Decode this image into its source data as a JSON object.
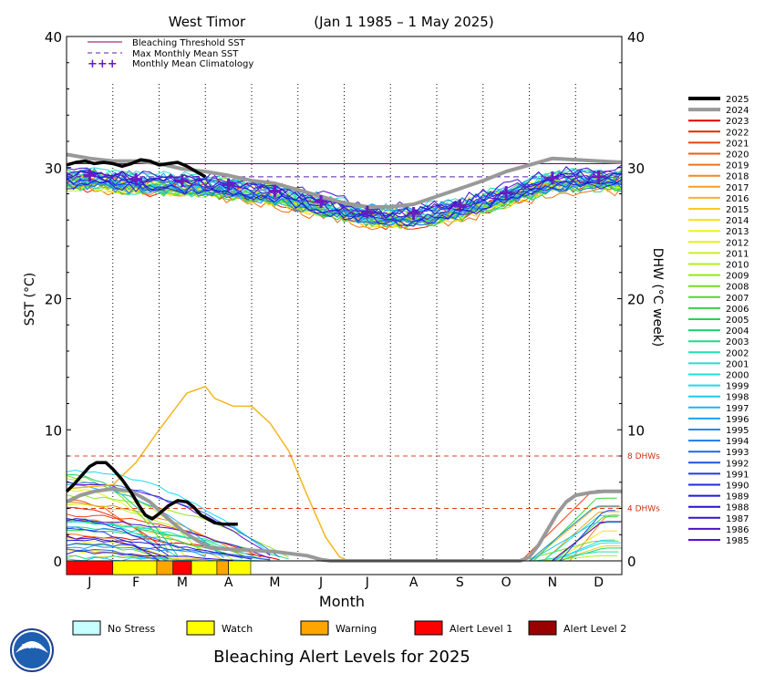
{
  "chart_data": {
    "type": "line",
    "title": "West Timor",
    "date_range": "(Jan 1 1985 – 1 May 2025)",
    "xlabel": "Month",
    "ylabel_left": "SST (°C)",
    "ylabel_right": "DHW (°C week)",
    "ylim": [
      0,
      40
    ],
    "yticks": [
      0,
      10,
      20,
      30,
      40
    ],
    "months": [
      "J",
      "F",
      "M",
      "A",
      "M",
      "J",
      "J",
      "A",
      "S",
      "O",
      "N",
      "D"
    ],
    "bleaching_threshold_sst": 30.3,
    "max_monthly_mean_sst": 29.3,
    "dhw_thresholds": [
      {
        "value": 8,
        "label": "8 DHWs"
      },
      {
        "value": 4,
        "label": "4 DHWs"
      }
    ],
    "monthly_mean_climatology": [
      29.4,
      29.1,
      29.0,
      28.7,
      28.2,
      27.4,
      26.6,
      26.5,
      27.1,
      28.1,
      29.2,
      29.3
    ],
    "legend_main": [
      {
        "label": "Bleaching Threshold SST",
        "style": "solid",
        "color": "#880055"
      },
      {
        "label": "Max Monthly Mean SST",
        "style": "dashed",
        "color": "#5522aa"
      },
      {
        "label": "Monthly Mean Climatology",
        "style": "plus",
        "color": "#6a1bc2"
      }
    ],
    "highlight_series": [
      {
        "name": "2025",
        "color": "#000000",
        "sst": [
          [
            0.0,
            30.2
          ],
          [
            0.2,
            30.4
          ],
          [
            0.4,
            30.5
          ],
          [
            0.6,
            30.3
          ],
          [
            0.8,
            30.4
          ],
          [
            1.0,
            30.3
          ],
          [
            1.2,
            30.1
          ],
          [
            1.4,
            30.3
          ],
          [
            1.6,
            30.6
          ],
          [
            1.8,
            30.5
          ],
          [
            2.0,
            30.2
          ],
          [
            2.2,
            30.3
          ],
          [
            2.4,
            30.4
          ],
          [
            2.6,
            30.1
          ],
          [
            2.8,
            29.7
          ],
          [
            3.0,
            29.3
          ]
        ],
        "dhw": [
          [
            0.0,
            5.3
          ],
          [
            0.15,
            5.8
          ],
          [
            0.3,
            6.4
          ],
          [
            0.5,
            7.2
          ],
          [
            0.65,
            7.5
          ],
          [
            0.85,
            7.5
          ],
          [
            1.0,
            7.0
          ],
          [
            1.2,
            6.2
          ],
          [
            1.4,
            5.2
          ],
          [
            1.55,
            4.3
          ],
          [
            1.7,
            3.5
          ],
          [
            1.85,
            3.2
          ],
          [
            2.0,
            3.6
          ],
          [
            2.2,
            4.2
          ],
          [
            2.4,
            4.6
          ],
          [
            2.6,
            4.5
          ],
          [
            2.75,
            4.1
          ],
          [
            2.9,
            3.5
          ],
          [
            3.05,
            3.2
          ],
          [
            3.2,
            2.9
          ],
          [
            3.4,
            2.8
          ],
          [
            3.6,
            2.8
          ],
          [
            3.7,
            2.8
          ]
        ]
      },
      {
        "name": "2024",
        "color": "#999999",
        "sst": [
          [
            0.0,
            31.0
          ],
          [
            0.5,
            30.7
          ],
          [
            1.0,
            30.5
          ],
          [
            1.5,
            30.5
          ],
          [
            2.0,
            30.3
          ],
          [
            2.5,
            29.9
          ],
          [
            3.0,
            29.7
          ],
          [
            3.5,
            29.4
          ],
          [
            4.0,
            29.0
          ],
          [
            4.5,
            28.8
          ],
          [
            5.0,
            28.3
          ],
          [
            5.5,
            27.8
          ],
          [
            6.0,
            27.3
          ],
          [
            6.5,
            27.0
          ],
          [
            7.0,
            27.0
          ],
          [
            7.5,
            27.2
          ],
          [
            8.0,
            27.8
          ],
          [
            8.5,
            28.4
          ],
          [
            9.0,
            29.0
          ],
          [
            9.5,
            29.7
          ],
          [
            10.0,
            30.2
          ],
          [
            10.5,
            30.7
          ],
          [
            11.0,
            30.6
          ],
          [
            11.5,
            30.5
          ],
          [
            12.0,
            30.4
          ]
        ],
        "dhw": [
          [
            0.0,
            4.5
          ],
          [
            0.3,
            5.0
          ],
          [
            0.6,
            5.3
          ],
          [
            1.0,
            5.5
          ],
          [
            1.4,
            5.3
          ],
          [
            1.8,
            4.5
          ],
          [
            2.2,
            3.2
          ],
          [
            2.5,
            2.3
          ],
          [
            2.8,
            1.6
          ],
          [
            3.1,
            1.0
          ],
          [
            3.5,
            0.9
          ],
          [
            4.5,
            0.7
          ],
          [
            5.2,
            0.4
          ],
          [
            5.5,
            0.1
          ],
          [
            5.7,
            0.0
          ],
          [
            9.8,
            0.0
          ],
          [
            10.0,
            0.3
          ],
          [
            10.2,
            1.2
          ],
          [
            10.4,
            2.4
          ],
          [
            10.6,
            3.6
          ],
          [
            10.8,
            4.5
          ],
          [
            11.0,
            5.0
          ],
          [
            11.3,
            5.2
          ],
          [
            11.6,
            5.3
          ],
          [
            12.0,
            5.3
          ]
        ]
      }
    ],
    "year_legend": [
      {
        "year": "2025",
        "color": "#000000"
      },
      {
        "year": "2024",
        "color": "#999999"
      },
      {
        "year": "2023",
        "color": "#e00000"
      },
      {
        "year": "2022",
        "color": "#ee2200"
      },
      {
        "year": "2021",
        "color": "#f04010"
      },
      {
        "year": "2020",
        "color": "#f05a10"
      },
      {
        "year": "2019",
        "color": "#f07018"
      },
      {
        "year": "2018",
        "color": "#f08a20"
      },
      {
        "year": "2017",
        "color": "#f5a020"
      },
      {
        "year": "2016",
        "color": "#f5b520"
      },
      {
        "year": "2015",
        "color": "#f8cc20"
      },
      {
        "year": "2014",
        "color": "#f8e020"
      },
      {
        "year": "2013",
        "color": "#f0f020"
      },
      {
        "year": "2012",
        "color": "#e0f020"
      },
      {
        "year": "2011",
        "color": "#c8f020"
      },
      {
        "year": "2010",
        "color": "#b0ee20"
      },
      {
        "year": "2009",
        "color": "#90e820"
      },
      {
        "year": "2008",
        "color": "#70e020"
      },
      {
        "year": "2007",
        "color": "#50d830"
      },
      {
        "year": "2006",
        "color": "#38d040"
      },
      {
        "year": "2005",
        "color": "#28d050"
      },
      {
        "year": "2004",
        "color": "#20d070"
      },
      {
        "year": "2003",
        "color": "#20d890"
      },
      {
        "year": "2002",
        "color": "#20e0b0"
      },
      {
        "year": "2001",
        "color": "#20e0c8"
      },
      {
        "year": "2000",
        "color": "#20e0e0"
      },
      {
        "year": "1999",
        "color": "#20d8f0"
      },
      {
        "year": "1998",
        "color": "#20c8f0"
      },
      {
        "year": "1997",
        "color": "#20b4f0"
      },
      {
        "year": "1996",
        "color": "#20a0f0"
      },
      {
        "year": "1995",
        "color": "#208cf0"
      },
      {
        "year": "1994",
        "color": "#2078f0"
      },
      {
        "year": "1993",
        "color": "#2064f0"
      },
      {
        "year": "1992",
        "color": "#2050e8"
      },
      {
        "year": "1991",
        "color": "#203ce0"
      },
      {
        "year": "1990",
        "color": "#2028e0"
      },
      {
        "year": "1989",
        "color": "#2018d8"
      },
      {
        "year": "1988",
        "color": "#2810d0"
      },
      {
        "year": "1987",
        "color": "#3810d0"
      },
      {
        "year": "1986",
        "color": "#4810d0"
      },
      {
        "year": "1985",
        "color": "#5a10d0"
      }
    ],
    "alert_bar_2025": [
      {
        "start": 0.0,
        "end": 1.0,
        "color": "#ff0000"
      },
      {
        "start": 1.0,
        "end": 1.95,
        "color": "#ffff00"
      },
      {
        "start": 1.95,
        "end": 2.3,
        "color": "#ffa500"
      },
      {
        "start": 2.3,
        "end": 2.7,
        "color": "#ff0000"
      },
      {
        "start": 2.7,
        "end": 3.25,
        "color": "#ffff00"
      },
      {
        "start": 3.25,
        "end": 3.5,
        "color": "#ffa500"
      },
      {
        "start": 3.5,
        "end": 3.98,
        "color": "#ffff00"
      }
    ],
    "alert_legend": [
      {
        "label": "No Stress",
        "color": "#c8ffff"
      },
      {
        "label": "Watch",
        "color": "#ffff00"
      },
      {
        "label": "Warning",
        "color": "#ffa500"
      },
      {
        "label": "Alert Level 1",
        "color": "#ff0000"
      },
      {
        "label": "Alert Level 2",
        "color": "#990000"
      }
    ],
    "footer_title": "Bleaching Alert Levels for 2025",
    "logo_text": "NOAA"
  }
}
